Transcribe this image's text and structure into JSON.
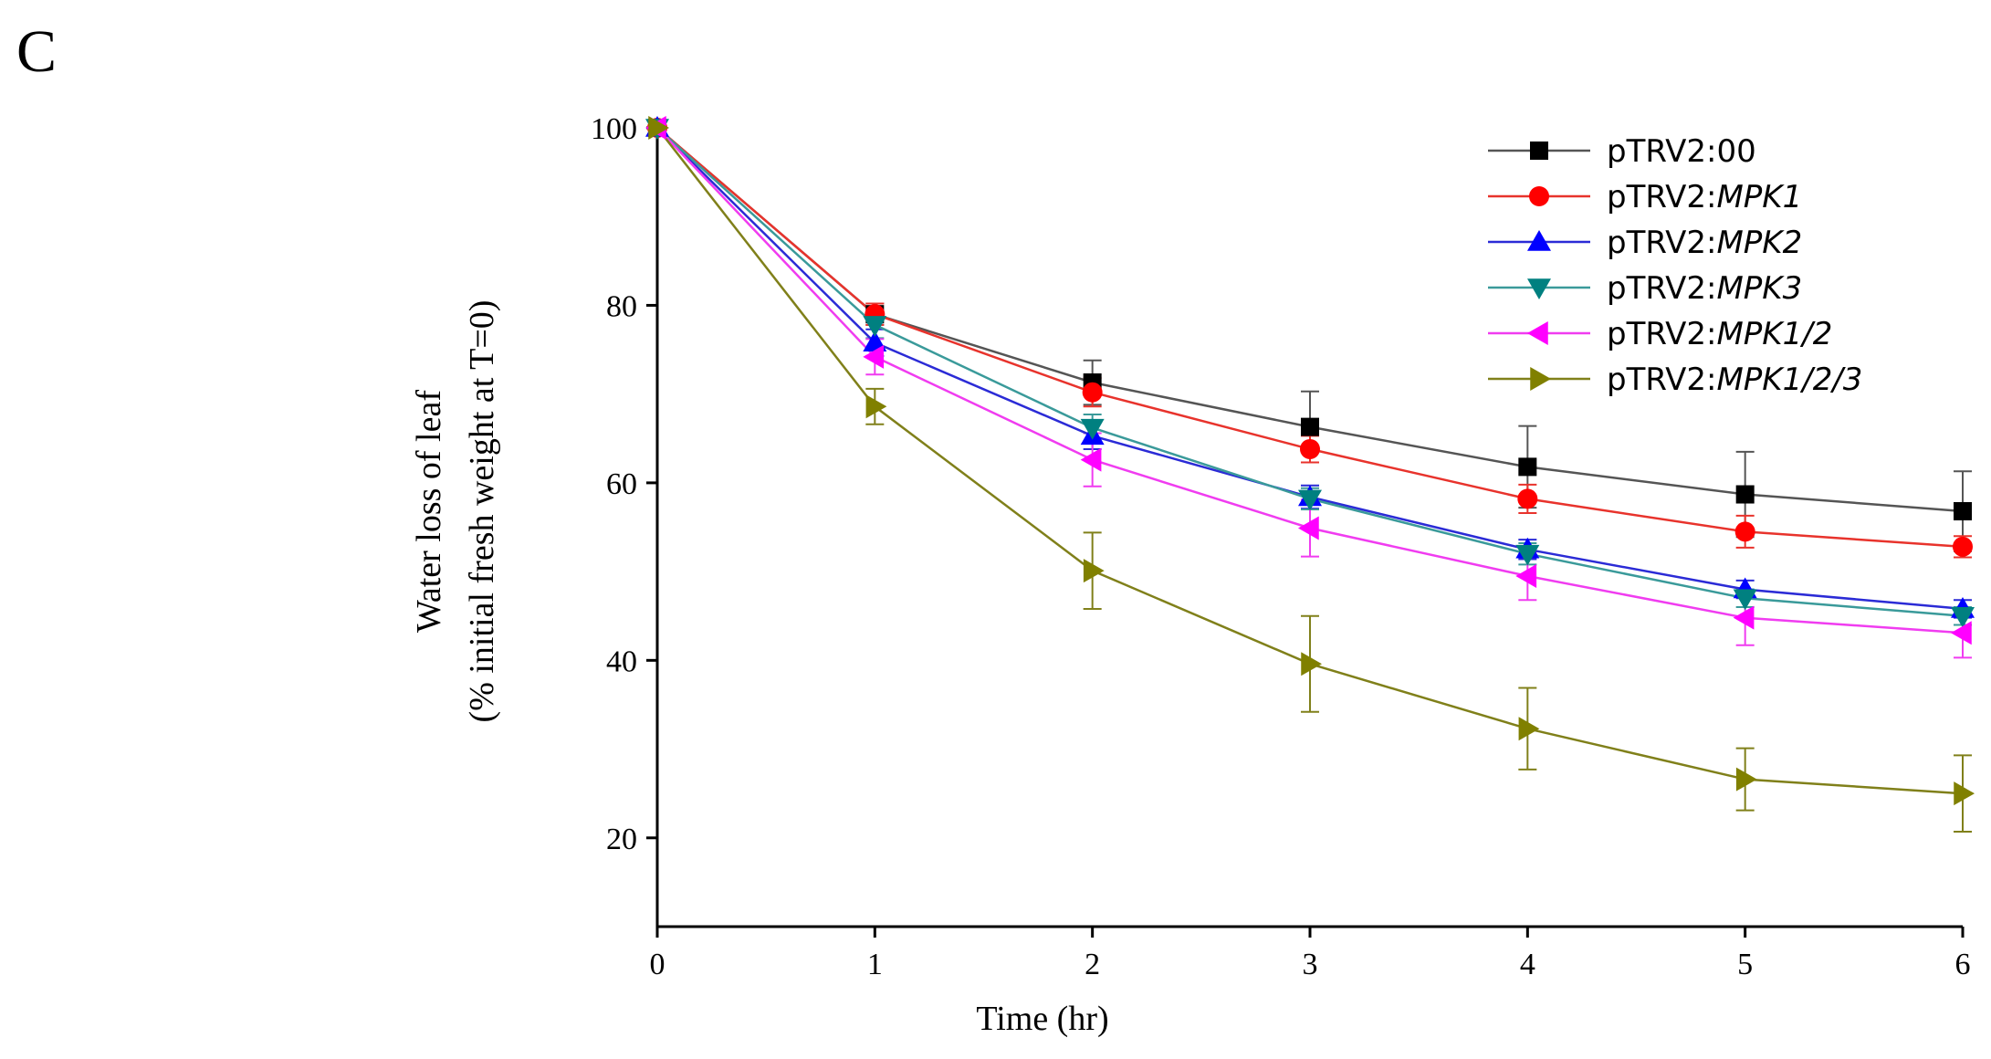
{
  "panel_label": "C",
  "chart_data": {
    "type": "line",
    "title": "",
    "xlabel": "Time (hr)",
    "ylabel_line1": "Water loss of leaf",
    "ylabel_line2": "(% initial fresh weight at T=0)",
    "xlim": [
      0,
      6
    ],
    "ylim": [
      10,
      100
    ],
    "x_ticks": [
      0,
      1,
      2,
      3,
      4,
      5,
      6
    ],
    "y_ticks": [
      20,
      40,
      60,
      80,
      100
    ],
    "grid": false,
    "legend_position": "top-right",
    "x": [
      0,
      1,
      2,
      3,
      4,
      5,
      6
    ],
    "series": [
      {
        "name": "pTRV2:00",
        "prefix": "pTRV2:",
        "gene": "00",
        "gene_italic": false,
        "marker": "square",
        "marker_color": "#000000",
        "line_color": "#555555",
        "values": [
          100,
          79,
          71.3,
          66.3,
          61.8,
          58.7,
          56.8
        ],
        "errors": [
          0,
          1.2,
          2.5,
          4.0,
          4.6,
          4.8,
          4.5
        ]
      },
      {
        "name": "pTRV2:MPK1",
        "prefix": "pTRV2:",
        "gene": "MPK1",
        "gene_italic": true,
        "marker": "circle",
        "marker_color": "#ff0000",
        "line_color": "#e8332c",
        "values": [
          100,
          79,
          70.2,
          63.8,
          58.2,
          54.5,
          52.8
        ],
        "errors": [
          0,
          1.2,
          1.6,
          1.5,
          1.6,
          1.8,
          1.2
        ]
      },
      {
        "name": "pTRV2:MPK2",
        "prefix": "pTRV2:",
        "gene": "MPK2",
        "gene_italic": true,
        "marker": "triangle-up",
        "marker_color": "#0000ff",
        "line_color": "#2b2bd6",
        "values": [
          100,
          75.8,
          65.3,
          58.4,
          52.5,
          48.0,
          45.8
        ],
        "errors": [
          0,
          1.5,
          1.5,
          1.3,
          1.1,
          1.0,
          1.0
        ]
      },
      {
        "name": "pTRV2:MPK3",
        "prefix": "pTRV2:",
        "gene": "MPK3",
        "gene_italic": true,
        "marker": "triangle-down",
        "marker_color": "#008080",
        "line_color": "#3a9a9a",
        "values": [
          100,
          77.8,
          66.2,
          58.2,
          52.0,
          47.0,
          45.0
        ],
        "errors": [
          0,
          1.5,
          1.5,
          1.2,
          1.2,
          1.0,
          1.0
        ]
      },
      {
        "name": "pTRV2:MPK1/2",
        "prefix": "pTRV2:",
        "gene": "MPK1/2",
        "gene_italic": true,
        "marker": "triangle-left",
        "marker_color": "#ff00ff",
        "line_color": "#f03cf0",
        "values": [
          100,
          74.2,
          62.6,
          54.9,
          49.5,
          44.8,
          43.1
        ],
        "errors": [
          0,
          2.0,
          3.0,
          3.2,
          2.7,
          3.1,
          2.8
        ]
      },
      {
        "name": "pTRV2:MPK1/2/3",
        "prefix": "pTRV2:",
        "gene": "MPK1/2/3",
        "gene_italic": true,
        "marker": "triangle-right",
        "marker_color": "#808000",
        "line_color": "#80801a",
        "values": [
          100,
          68.6,
          50.1,
          39.6,
          32.3,
          26.6,
          25.0
        ],
        "errors": [
          0,
          2.0,
          4.3,
          5.4,
          4.6,
          3.5,
          4.3
        ]
      }
    ]
  }
}
